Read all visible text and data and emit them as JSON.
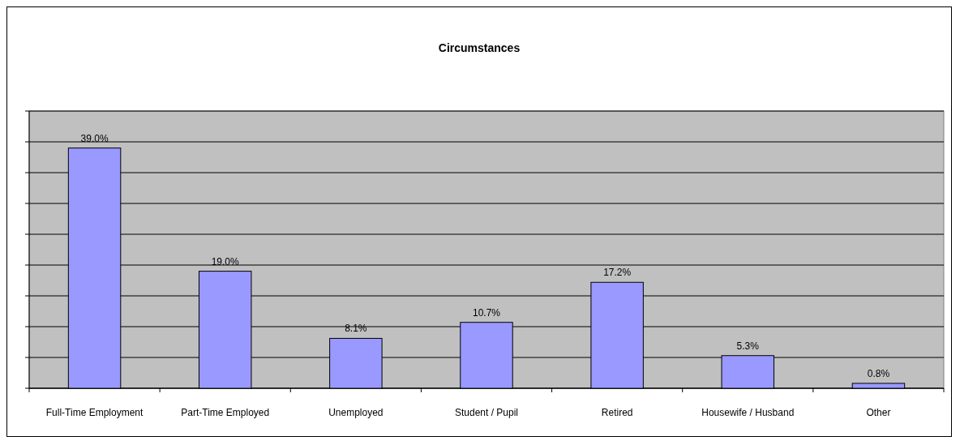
{
  "chart_data": {
    "type": "bar",
    "title": "Circumstances",
    "categories": [
      "Full-Time Employment",
      "Part-Time Employed",
      "Unemployed",
      "Student / Pupil",
      "Retired",
      "Housewife / Husband",
      "Other"
    ],
    "values": [
      39.0,
      19.0,
      8.1,
      10.7,
      17.2,
      5.3,
      0.8
    ],
    "value_labels": [
      "39.0%",
      "19.0%",
      "8.1%",
      "10.7%",
      "17.2%",
      "5.3%",
      "0.8%"
    ],
    "color": "#9999ff",
    "ylim": [
      0,
      45
    ],
    "yticks": [
      {
        "value": 0,
        "label": null
      },
      {
        "value": 5,
        "label": null
      },
      {
        "value": 10,
        "label": null
      },
      {
        "value": 15,
        "label": null
      },
      {
        "value": 20,
        "label": null
      },
      {
        "value": 25,
        "label": null
      },
      {
        "value": 30,
        "label": null
      },
      {
        "value": 35,
        "label": null
      },
      {
        "value": 40,
        "label": null
      },
      {
        "value": 45,
        "label": null
      }
    ],
    "grid": true,
    "tick_labels": "x"
  }
}
